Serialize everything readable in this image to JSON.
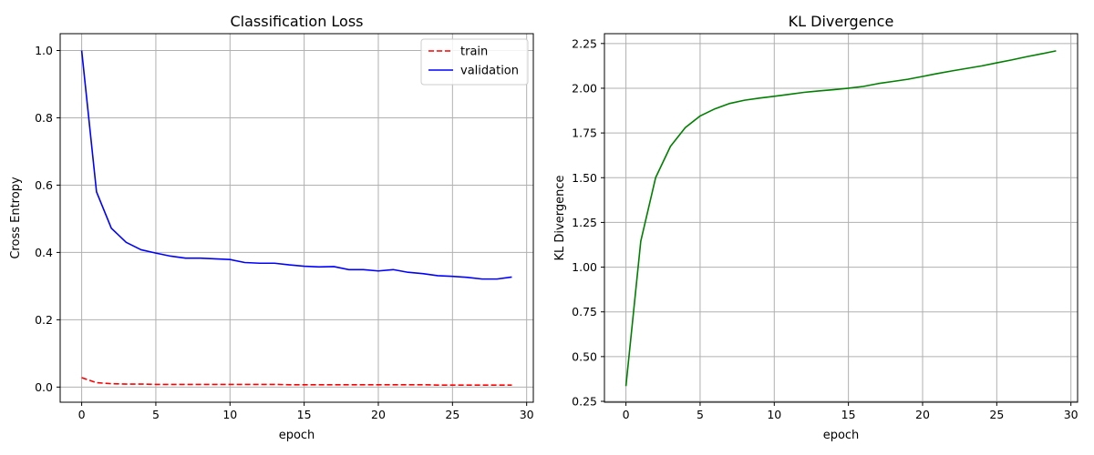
{
  "chart_data": [
    {
      "type": "line",
      "title": "Classification Loss",
      "xlabel": "epoch",
      "ylabel": "Cross Entropy",
      "xlim": [
        -1.45,
        30.45
      ],
      "ylim": [
        -0.045,
        1.05
      ],
      "xticks": [
        0,
        5,
        10,
        15,
        20,
        25,
        30
      ],
      "yticks": [
        0.0,
        0.2,
        0.4,
        0.6,
        0.8,
        1.0
      ],
      "ytick_decimals": 1,
      "grid": true,
      "legend": "top-right",
      "series": [
        {
          "name": "train",
          "color": "#ff0000",
          "dash": "dashed",
          "x": [
            0,
            1,
            2,
            3,
            4,
            5,
            6,
            7,
            8,
            9,
            10,
            11,
            12,
            13,
            14,
            15,
            16,
            17,
            18,
            19,
            20,
            21,
            22,
            23,
            24,
            25,
            26,
            27,
            28,
            29
          ],
          "y": [
            0.028,
            0.013,
            0.01,
            0.009,
            0.009,
            0.008,
            0.008,
            0.008,
            0.008,
            0.008,
            0.008,
            0.008,
            0.008,
            0.008,
            0.007,
            0.007,
            0.007,
            0.007,
            0.007,
            0.007,
            0.007,
            0.007,
            0.007,
            0.007,
            0.006,
            0.006,
            0.006,
            0.006,
            0.006,
            0.006
          ]
        },
        {
          "name": "validation",
          "color": "#0000ff",
          "dash": "solid",
          "x": [
            0,
            1,
            2,
            3,
            4,
            5,
            6,
            7,
            8,
            9,
            10,
            11,
            12,
            13,
            14,
            15,
            16,
            17,
            18,
            19,
            20,
            21,
            22,
            23,
            24,
            25,
            26,
            27,
            28,
            29
          ],
          "y": [
            1.0,
            0.58,
            0.472,
            0.43,
            0.408,
            0.398,
            0.389,
            0.383,
            0.383,
            0.381,
            0.379,
            0.37,
            0.368,
            0.368,
            0.363,
            0.359,
            0.357,
            0.358,
            0.349,
            0.349,
            0.345,
            0.349,
            0.341,
            0.337,
            0.331,
            0.329,
            0.326,
            0.321,
            0.321,
            0.327
          ]
        }
      ]
    },
    {
      "type": "line",
      "title": "KL Divergence",
      "xlabel": "epoch",
      "ylabel": "KL Divergence",
      "xlim": [
        -1.45,
        30.45
      ],
      "ylim": [
        0.245,
        2.305
      ],
      "xticks": [
        0,
        5,
        10,
        15,
        20,
        25,
        30
      ],
      "yticks": [
        0.25,
        0.5,
        0.75,
        1.0,
        1.25,
        1.5,
        1.75,
        2.0,
        2.25
      ],
      "ytick_decimals": 2,
      "grid": true,
      "legend": "none",
      "series": [
        {
          "color": "#008000",
          "dash": "solid",
          "x": [
            0,
            1,
            2,
            3,
            4,
            5,
            6,
            7,
            8,
            9,
            10,
            11,
            12,
            13,
            14,
            15,
            16,
            17,
            18,
            19,
            20,
            21,
            22,
            23,
            24,
            25,
            26,
            27,
            28,
            29
          ],
          "y": [
            0.335,
            1.145,
            1.5,
            1.675,
            1.78,
            1.845,
            1.885,
            1.915,
            1.933,
            1.945,
            1.955,
            1.966,
            1.977,
            1.985,
            1.992,
            2.0,
            2.01,
            2.026,
            2.038,
            2.05,
            2.066,
            2.082,
            2.097,
            2.111,
            2.125,
            2.142,
            2.158,
            2.176,
            2.192,
            2.209
          ]
        }
      ]
    }
  ]
}
